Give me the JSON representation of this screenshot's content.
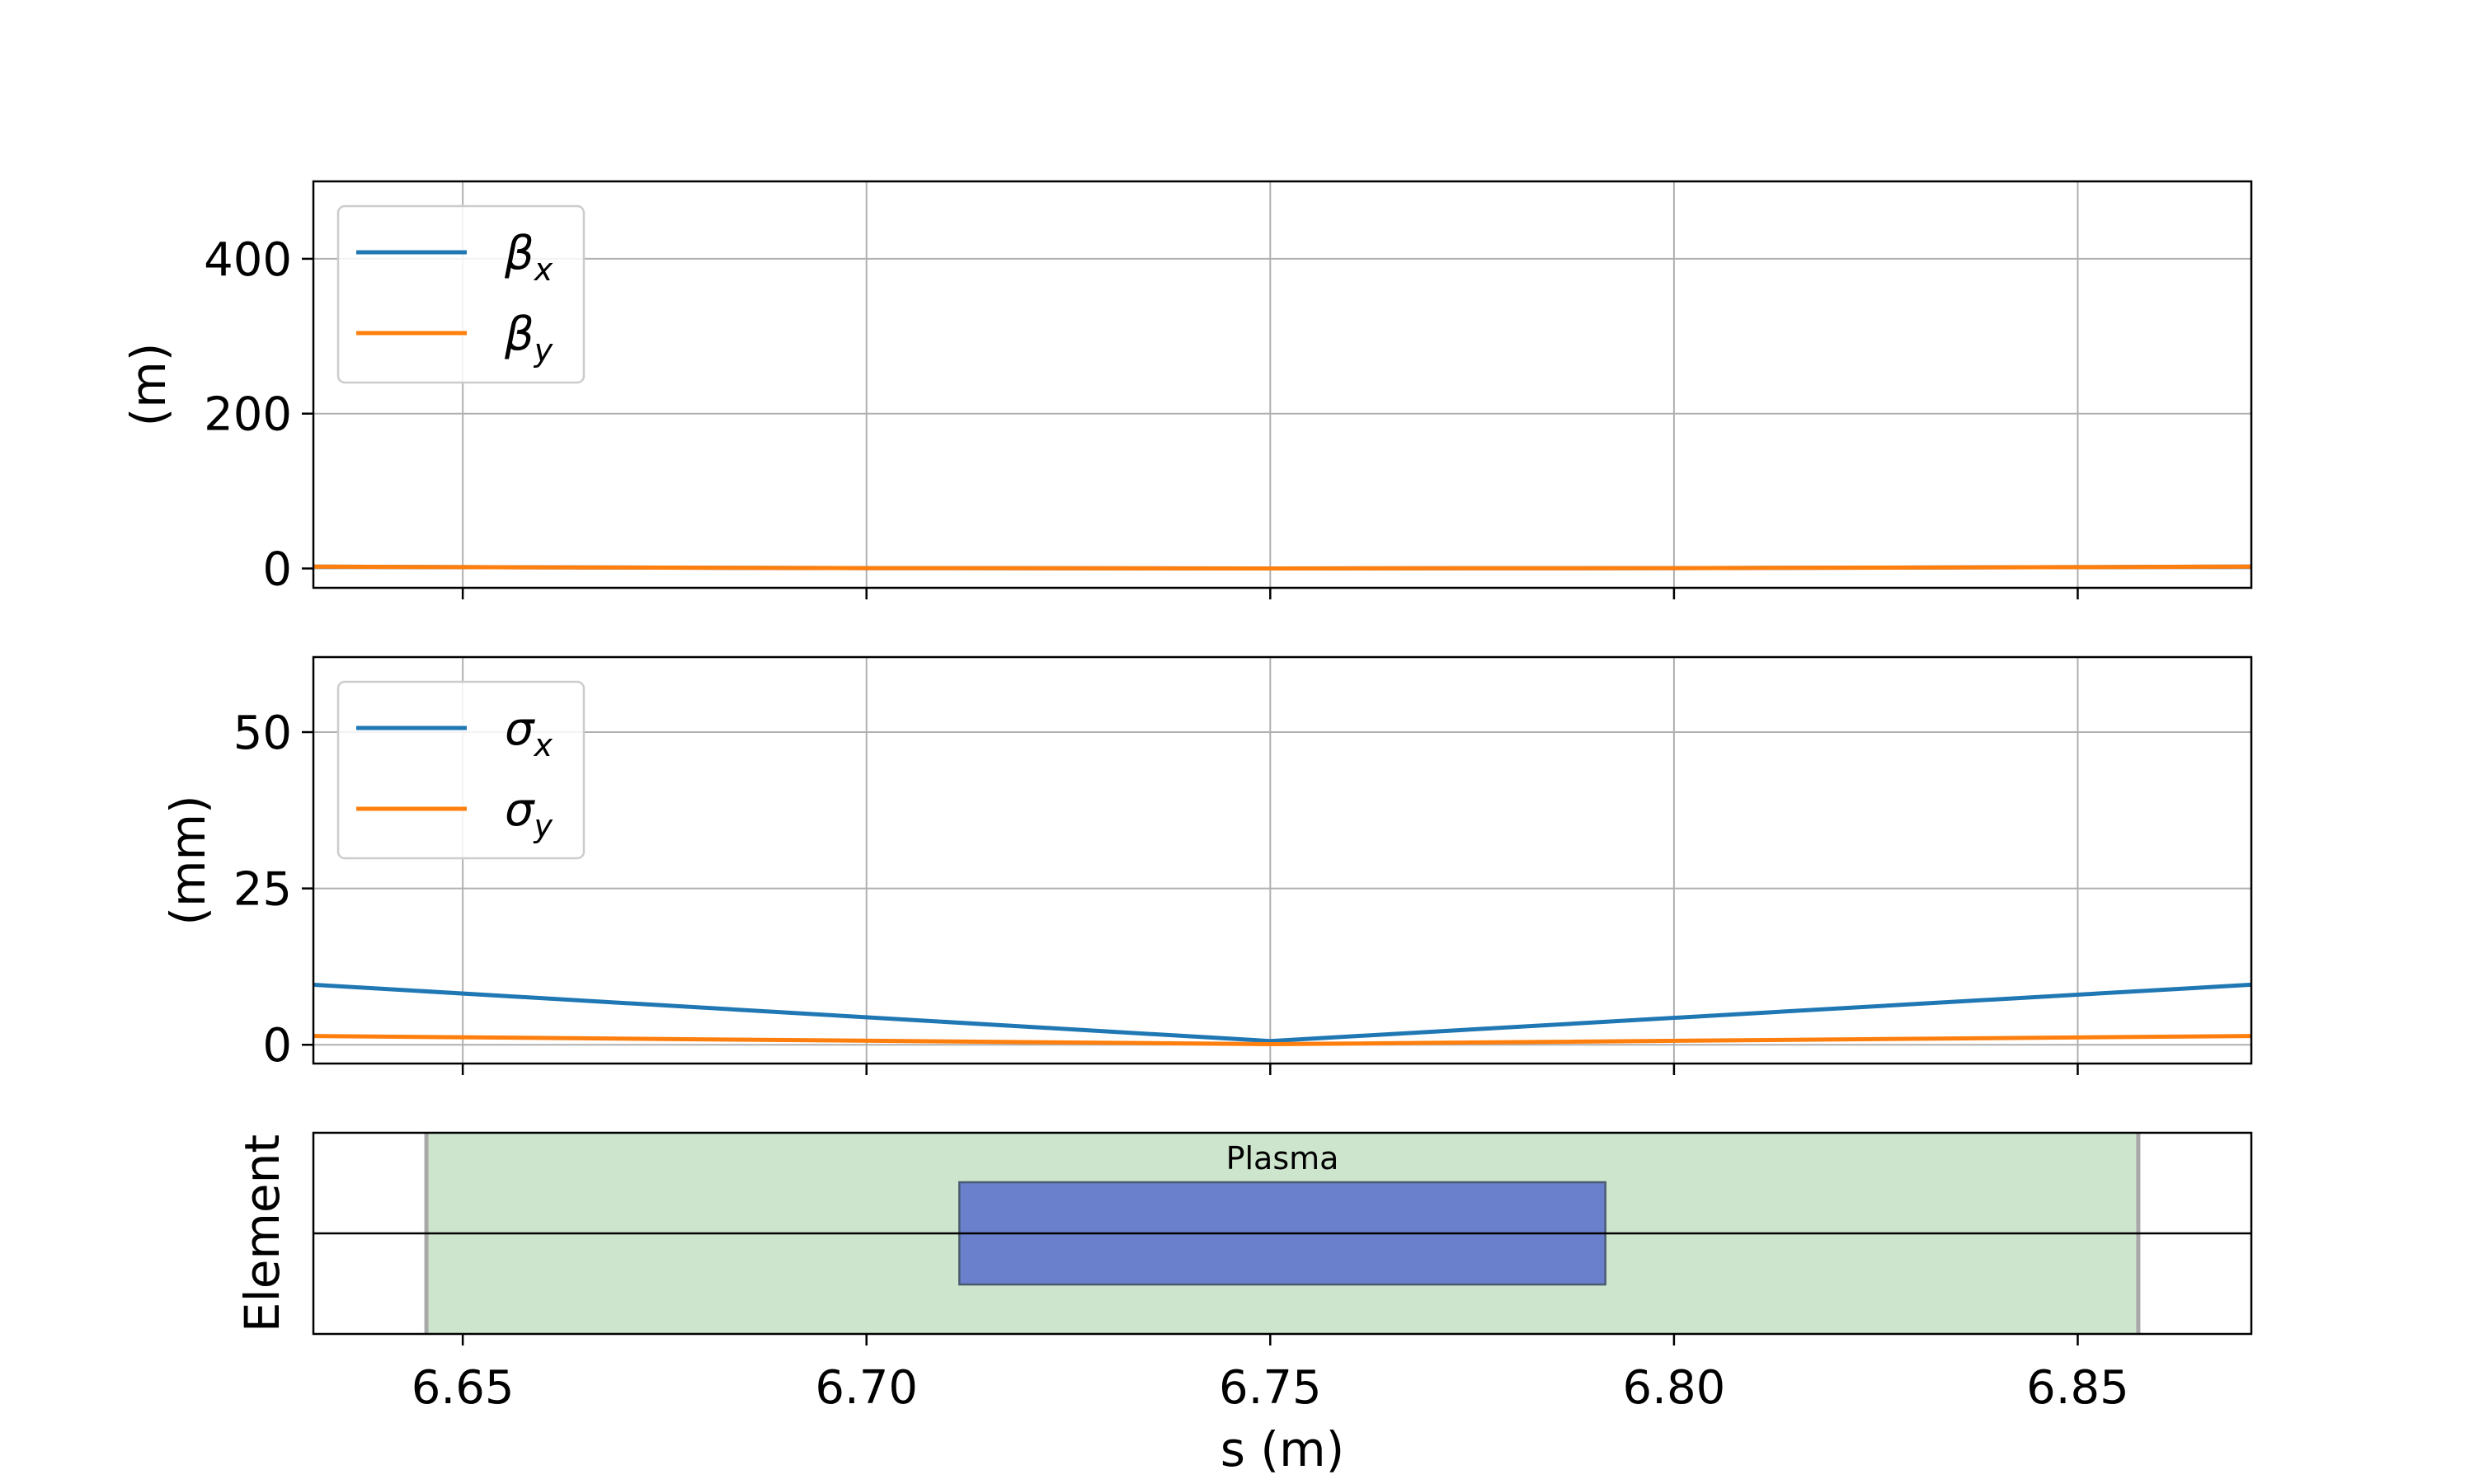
{
  "chart_data": [
    {
      "type": "line",
      "panel": "beta",
      "ylabel": "(m)",
      "xlim": [
        6.6315,
        6.8715
      ],
      "ylim": [
        -25,
        500
      ],
      "yticks": [
        0,
        200,
        400
      ],
      "xticks": [
        6.65,
        6.7,
        6.75,
        6.8,
        6.85
      ],
      "grid": true,
      "legend_placement": "upper-left",
      "series": [
        {
          "name": "β_x",
          "symbol": "β",
          "sub": "x",
          "color": "#1f77b4",
          "x": [
            6.6315,
            6.65,
            6.7,
            6.75,
            6.8,
            6.85,
            6.8715
          ],
          "y": [
            2.5,
            1.7,
            0.4,
            0.05,
            0.4,
            1.7,
            2.5
          ]
        },
        {
          "name": "β_y",
          "symbol": "β",
          "sub": "y",
          "color": "#ff7f0e",
          "x": [
            6.6315,
            6.65,
            6.7,
            6.75,
            6.8,
            6.85,
            6.8715
          ],
          "y": [
            2.5,
            1.7,
            0.4,
            0.05,
            0.4,
            1.7,
            2.5
          ]
        }
      ]
    },
    {
      "type": "line",
      "panel": "sigma",
      "ylabel": "(mm)",
      "xlim": [
        6.6315,
        6.8715
      ],
      "ylim": [
        -3,
        62
      ],
      "yticks": [
        0,
        25,
        50
      ],
      "xticks": [
        6.65,
        6.7,
        6.75,
        6.8,
        6.85
      ],
      "grid": true,
      "legend_placement": "upper-left",
      "series": [
        {
          "name": "σ_x",
          "symbol": "σ",
          "sub": "x",
          "color": "#1f77b4",
          "x": [
            6.6315,
            6.75,
            6.8715
          ],
          "y": [
            9.6,
            0.6,
            9.6
          ]
        },
        {
          "name": "σ_y",
          "symbol": "σ",
          "sub": "y",
          "color": "#ff7f0e",
          "x": [
            6.6315,
            6.75,
            6.8715
          ],
          "y": [
            1.4,
            0.1,
            1.4
          ]
        }
      ]
    },
    {
      "type": "layout",
      "panel": "element",
      "ylabel": "Element",
      "xlabel": "s (m)",
      "xlim": [
        6.6315,
        6.8715
      ],
      "xticks": [
        6.65,
        6.7,
        6.75,
        6.8,
        6.85
      ],
      "xtick_labels": [
        "6.65",
        "6.70",
        "6.75",
        "6.80",
        "6.85"
      ],
      "elements": [
        {
          "kind": "drift",
          "s_start": 6.6455,
          "s_end": 6.8575,
          "color": "#cce5cc"
        },
        {
          "kind": "plasma",
          "label": "Plasma",
          "s_start": 6.7115,
          "s_end": 6.7915,
          "color": "#6a80cc"
        }
      ]
    }
  ]
}
